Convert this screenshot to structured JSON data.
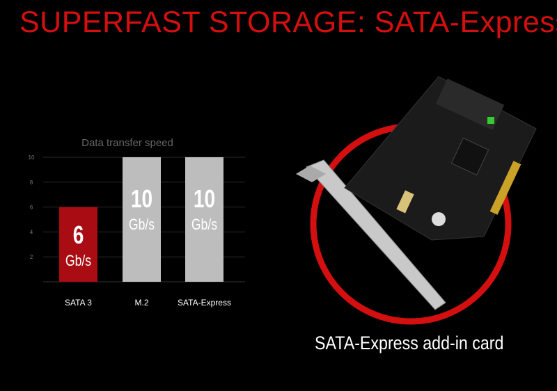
{
  "title": "SUPERFAST STORAGE: SATA-Express",
  "caption": "SATA-Express add-in card",
  "colors": {
    "accent": "#d40f0f",
    "sata3_bar": "#a90c12",
    "other_bars": "#bdbdbd"
  },
  "chart_data": {
    "type": "bar",
    "title": "Data transfer speed",
    "categories": [
      "SATA 3",
      "M.2",
      "SATA-Express"
    ],
    "values": [
      6,
      10,
      10
    ],
    "value_labels": [
      {
        "value": "6",
        "unit": "Gb/s"
      },
      {
        "value": "10",
        "unit": "Gb/s"
      },
      {
        "value": "10",
        "unit": "Gb/s"
      }
    ],
    "yticks": [
      2,
      4,
      6,
      8,
      10
    ],
    "ylim": [
      0,
      10
    ],
    "grid": true
  }
}
